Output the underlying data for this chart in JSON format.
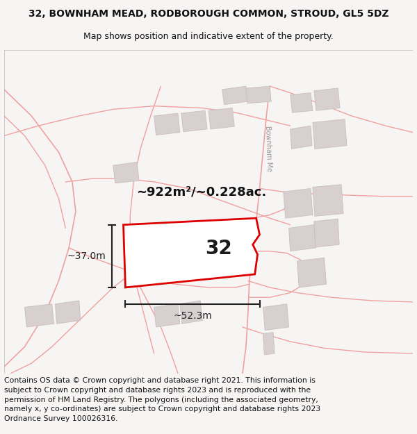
{
  "title_line1": "32, BOWNHAM MEAD, RODBOROUGH COMMON, STROUD, GL5 5DZ",
  "title_line2": "Map shows position and indicative extent of the property.",
  "footer_text": "Contains OS data © Crown copyright and database right 2021. This information is subject to Crown copyright and database rights 2023 and is reproduced with the permission of HM Land Registry. The polygons (including the associated geometry, namely x, y co-ordinates) are subject to Crown copyright and database rights 2023 Ordnance Survey 100026316.",
  "bg_color": "#f7f4f4",
  "map_bg": "#ffffff",
  "plot_outline_color": "#dd0000",
  "road_line_color": "#f0a0a0",
  "building_fill": "#d8d0d0",
  "building_edge": "#c8c0c0",
  "dim_color": "#222222",
  "label_32": "32",
  "area_label": "~922m²/~0.228ac.",
  "width_label": "~52.3m",
  "height_label": "~37.0m",
  "road_label": "Bownham Me",
  "title_fontsize": 10,
  "subtitle_fontsize": 9,
  "footer_fontsize": 7.8,
  "label_fontsize": 20,
  "area_fontsize": 13,
  "dim_fontsize": 10
}
